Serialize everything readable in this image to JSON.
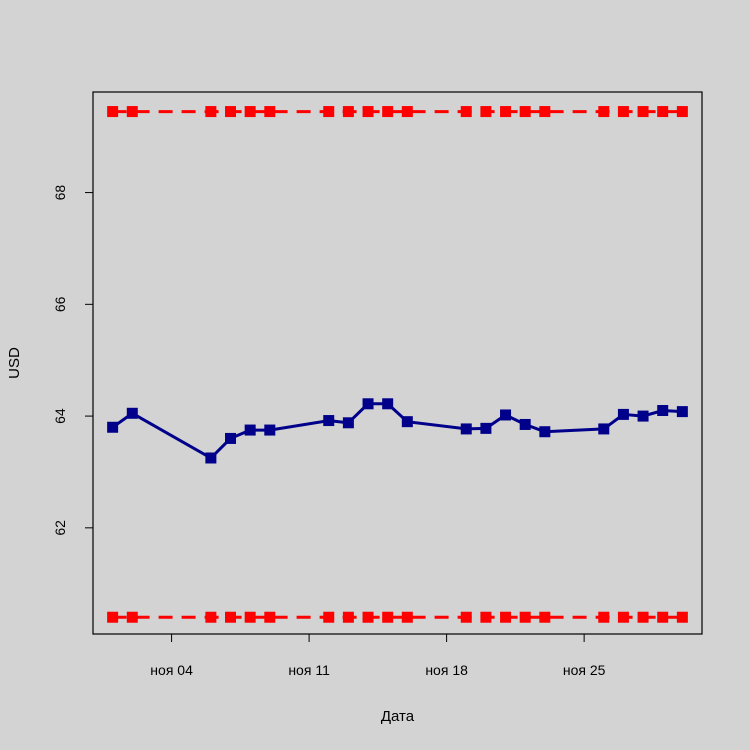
{
  "chart_data": {
    "type": "line",
    "title": "",
    "xlabel": "Дата",
    "ylabel": "USD",
    "x_ticks": [
      {
        "date": "2018-11-04",
        "label": "ноя 04"
      },
      {
        "date": "2018-11-11",
        "label": "ноя 11"
      },
      {
        "date": "2018-11-18",
        "label": "ноя 18"
      },
      {
        "date": "2018-11-25",
        "label": "ноя 25"
      }
    ],
    "y_ticks": [
      62,
      64,
      66,
      68
    ],
    "xlim": [
      "2018-10-31",
      "2018-12-01"
    ],
    "ylim": [
      60.1,
      69.8
    ],
    "grid": false,
    "series": [
      {
        "color": "#00008b",
        "style": "solid",
        "marker": "square",
        "points": [
          {
            "x": "2018-11-01",
            "y": 63.8
          },
          {
            "x": "2018-11-02",
            "y": 64.05
          },
          {
            "x": "2018-11-06",
            "y": 63.25
          },
          {
            "x": "2018-11-07",
            "y": 63.6
          },
          {
            "x": "2018-11-08",
            "y": 63.75
          },
          {
            "x": "2018-11-09",
            "y": 63.75
          },
          {
            "x": "2018-11-12",
            "y": 63.92
          },
          {
            "x": "2018-11-13",
            "y": 63.88
          },
          {
            "x": "2018-11-14",
            "y": 64.22
          },
          {
            "x": "2018-11-15",
            "y": 64.22
          },
          {
            "x": "2018-11-16",
            "y": 63.9
          },
          {
            "x": "2018-11-19",
            "y": 63.77
          },
          {
            "x": "2018-11-20",
            "y": 63.78
          },
          {
            "x": "2018-11-21",
            "y": 64.02
          },
          {
            "x": "2018-11-22",
            "y": 63.85
          },
          {
            "x": "2018-11-23",
            "y": 63.72
          },
          {
            "x": "2018-11-26",
            "y": 63.77
          },
          {
            "x": "2018-11-27",
            "y": 64.03
          },
          {
            "x": "2018-11-28",
            "y": 64.0
          },
          {
            "x": "2018-11-29",
            "y": 64.1
          },
          {
            "x": "2018-11-30",
            "y": 64.08
          }
        ]
      },
      {
        "color": "#ff0000",
        "style": "dashed",
        "marker": "square",
        "points": [
          {
            "x": "2018-11-01",
            "y": 69.45
          },
          {
            "x": "2018-11-02",
            "y": 69.45
          },
          {
            "x": "2018-11-06",
            "y": 69.45
          },
          {
            "x": "2018-11-07",
            "y": 69.45
          },
          {
            "x": "2018-11-08",
            "y": 69.45
          },
          {
            "x": "2018-11-09",
            "y": 69.45
          },
          {
            "x": "2018-11-12",
            "y": 69.45
          },
          {
            "x": "2018-11-13",
            "y": 69.45
          },
          {
            "x": "2018-11-14",
            "y": 69.45
          },
          {
            "x": "2018-11-15",
            "y": 69.45
          },
          {
            "x": "2018-11-16",
            "y": 69.45
          },
          {
            "x": "2018-11-19",
            "y": 69.45
          },
          {
            "x": "2018-11-20",
            "y": 69.45
          },
          {
            "x": "2018-11-21",
            "y": 69.45
          },
          {
            "x": "2018-11-22",
            "y": 69.45
          },
          {
            "x": "2018-11-23",
            "y": 69.45
          },
          {
            "x": "2018-11-26",
            "y": 69.45
          },
          {
            "x": "2018-11-27",
            "y": 69.45
          },
          {
            "x": "2018-11-28",
            "y": 69.45
          },
          {
            "x": "2018-11-29",
            "y": 69.45
          },
          {
            "x": "2018-11-30",
            "y": 69.45
          }
        ]
      },
      {
        "color": "#ff0000",
        "style": "dashed",
        "marker": "square",
        "points": [
          {
            "x": "2018-11-01",
            "y": 60.4
          },
          {
            "x": "2018-11-02",
            "y": 60.4
          },
          {
            "x": "2018-11-06",
            "y": 60.4
          },
          {
            "x": "2018-11-07",
            "y": 60.4
          },
          {
            "x": "2018-11-08",
            "y": 60.4
          },
          {
            "x": "2018-11-09",
            "y": 60.4
          },
          {
            "x": "2018-11-12",
            "y": 60.4
          },
          {
            "x": "2018-11-13",
            "y": 60.4
          },
          {
            "x": "2018-11-14",
            "y": 60.4
          },
          {
            "x": "2018-11-15",
            "y": 60.4
          },
          {
            "x": "2018-11-16",
            "y": 60.4
          },
          {
            "x": "2018-11-19",
            "y": 60.4
          },
          {
            "x": "2018-11-20",
            "y": 60.4
          },
          {
            "x": "2018-11-21",
            "y": 60.4
          },
          {
            "x": "2018-11-22",
            "y": 60.4
          },
          {
            "x": "2018-11-23",
            "y": 60.4
          },
          {
            "x": "2018-11-26",
            "y": 60.4
          },
          {
            "x": "2018-11-27",
            "y": 60.4
          },
          {
            "x": "2018-11-28",
            "y": 60.4
          },
          {
            "x": "2018-11-29",
            "y": 60.4
          },
          {
            "x": "2018-11-30",
            "y": 60.4
          }
        ]
      }
    ]
  }
}
